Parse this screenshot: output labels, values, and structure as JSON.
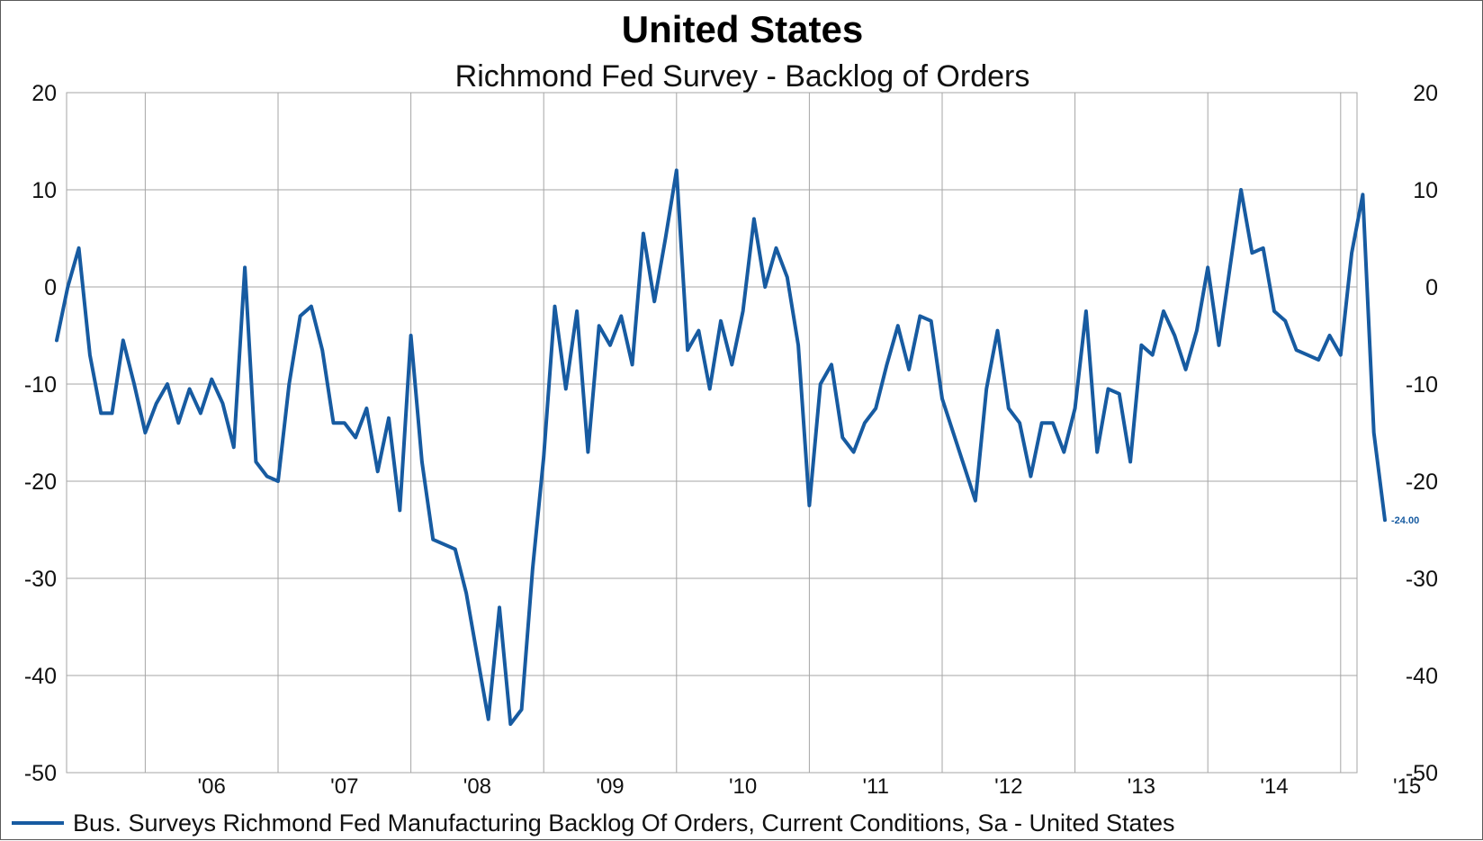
{
  "chart_data": {
    "type": "line",
    "title": "United States",
    "subtitle": "Richmond Fed Survey - Backlog of Orders",
    "xlabel": "",
    "ylabel": "",
    "ylim": [
      -50,
      20
    ],
    "yticks": [
      20,
      10,
      0,
      -10,
      -20,
      -30,
      -40,
      -50
    ],
    "grid": true,
    "x_tick_labels": [
      "'06",
      "'07",
      "'08",
      "'09",
      "'10",
      "'11",
      "'12",
      "'13",
      "'14",
      "'15"
    ],
    "start": "2005-05",
    "frequency": "monthly",
    "series": [
      {
        "name": "Bus. Surveys Richmond Fed Manufacturing Backlog Of Orders, Current Conditions, Sa - United States",
        "color": "#175ba1",
        "values": [
          -5.5,
          0,
          4,
          -7,
          -13,
          -13,
          -5.5,
          -10,
          -15,
          -12,
          -10,
          -14,
          -10.5,
          -13,
          -9.5,
          -12,
          -16.5,
          2,
          -18,
          -19.5,
          -20,
          -10,
          -3,
          -2,
          -6.5,
          -14,
          -14,
          -15.5,
          -12.5,
          -19,
          -13.5,
          -23,
          -5,
          -18,
          -26,
          -26.5,
          -27,
          -31.5,
          -38,
          -44.5,
          -33,
          -45,
          -43.5,
          -29,
          -17.5,
          -2,
          -10.5,
          -2.5,
          -17,
          -4,
          -6,
          -3,
          -8,
          5.5,
          -1.5,
          5,
          12,
          -6.5,
          -4.5,
          -10.5,
          -3.5,
          -8,
          -2.5,
          7,
          0,
          4,
          1,
          -6,
          -22.5,
          -10,
          -8,
          -15.5,
          -17,
          -14,
          -12.5,
          -8,
          -4,
          -8.5,
          -3,
          -3.5,
          -11.5,
          -15,
          -18.5,
          -22,
          -10.5,
          -4.5,
          -12.5,
          -14,
          -19.5,
          -14,
          -14,
          -17,
          -12.5,
          -2.5,
          -17,
          -10.5,
          -11,
          -18,
          -6,
          -7,
          -2.5,
          -5,
          -8.5,
          -4.5,
          2,
          -6,
          2,
          10,
          3.5,
          4,
          -2.5,
          -3.5,
          -6.5,
          -7,
          -7.5,
          -5,
          -7,
          3.5,
          9.5,
          -15,
          -24
        ]
      }
    ],
    "last_value_label": "-24.00"
  },
  "legend": {
    "label": "Bus. Surveys Richmond Fed Manufacturing Backlog Of Orders, Current Conditions, Sa - United States"
  }
}
